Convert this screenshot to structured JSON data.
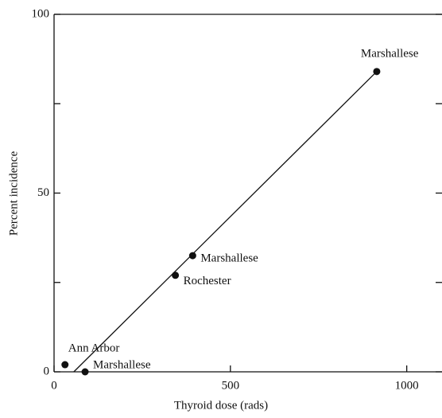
{
  "chart_data": {
    "type": "scatter",
    "x_label": "Thyroid dose (rads)",
    "y_label": "Percent incidence",
    "series": [
      {
        "color": "#111111",
        "x": [
          31,
          88,
          344,
          393,
          915
        ],
        "values": [
          2,
          0,
          27,
          32.5,
          84
        ],
        "point_labels": [
          "Ann Arbor",
          "Marshallese",
          "Rochester",
          "Marshallese",
          "Marshallese"
        ]
      }
    ],
    "fit_line": {
      "x": [
        56,
        915
      ],
      "values": [
        0,
        84
      ]
    },
    "xlim": [
      0,
      1100
    ],
    "ylim": [
      0,
      100
    ],
    "xticks": [
      0,
      500,
      1000
    ],
    "yticks": [
      0,
      50,
      100
    ],
    "yminor": [
      25,
      75
    ]
  }
}
